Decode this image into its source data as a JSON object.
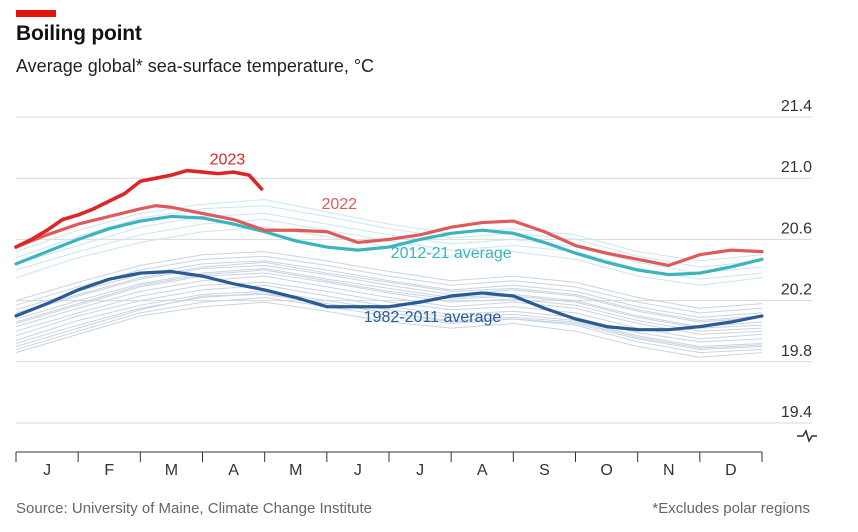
{
  "header": {
    "title": "Boiling point",
    "subtitle": "Average global* sea-surface temperature, °C"
  },
  "footer": {
    "source": "Source: University of Maine, Climate Change Institute",
    "note": "*Excludes polar regions"
  },
  "colors": {
    "accent_red": "#e3120b",
    "y2023": "#dc2626",
    "y2022": "#e05a5a",
    "avg_2012_21": "#3cb4bd",
    "avg_1982_2011": "#2a5b95",
    "background_years": "#c8d4e3",
    "background_recent": "#c9e7f3"
  },
  "chart_data": {
    "type": "line",
    "title": "Boiling point",
    "subtitle": "Average global* sea-surface temperature, °C",
    "xlabel": "",
    "ylabel": "",
    "x_unit": "month",
    "x_range": [
      0,
      12
    ],
    "months": [
      "J",
      "F",
      "M",
      "A",
      "M",
      "J",
      "J",
      "A",
      "S",
      "O",
      "N",
      "D"
    ],
    "ylim": [
      19.4,
      21.4
    ],
    "yticks": [
      19.4,
      19.8,
      20.2,
      20.6,
      21.0,
      21.4
    ],
    "ytick_labels": [
      "19.4",
      "19.8",
      "20.2",
      "20.6",
      "21.0",
      "21.4"
    ],
    "grid": true,
    "axis_break": true,
    "series": [
      {
        "name": "2023",
        "label": "2023",
        "x": [
          0,
          0.25,
          0.5,
          0.75,
          1,
          1.25,
          1.5,
          1.75,
          2,
          2.25,
          2.5,
          2.75,
          3,
          3.25,
          3.5,
          3.75,
          3.95
        ],
        "y": [
          20.55,
          20.6,
          20.66,
          20.73,
          20.76,
          20.8,
          20.85,
          20.9,
          20.98,
          21.0,
          21.02,
          21.05,
          21.04,
          21.03,
          21.04,
          21.02,
          20.93
        ]
      },
      {
        "name": "2022",
        "label": "2022",
        "x": [
          0,
          0.5,
          1,
          1.5,
          2,
          2.25,
          2.5,
          3,
          3.5,
          4,
          4.5,
          5,
          5.5,
          6,
          6.5,
          7,
          7.5,
          8,
          8.5,
          9,
          9.5,
          10,
          10.5,
          11,
          11.5,
          12
        ],
        "y": [
          20.55,
          20.63,
          20.7,
          20.75,
          20.8,
          20.82,
          20.81,
          20.77,
          20.73,
          20.66,
          20.66,
          20.65,
          20.58,
          20.6,
          20.63,
          20.68,
          20.71,
          20.72,
          20.65,
          20.56,
          20.51,
          20.47,
          20.43,
          20.5,
          20.53,
          20.52
        ]
      },
      {
        "name": "2012-21 average",
        "label": "2012-21 average",
        "x": [
          0,
          0.5,
          1,
          1.5,
          2,
          2.5,
          3,
          3.5,
          4,
          4.5,
          5,
          5.5,
          6,
          6.5,
          7,
          7.5,
          8,
          8.5,
          9,
          9.5,
          10,
          10.5,
          11,
          11.5,
          12
        ],
        "y": [
          20.44,
          20.52,
          20.6,
          20.67,
          20.72,
          20.75,
          20.74,
          20.7,
          20.65,
          20.59,
          20.55,
          20.53,
          20.55,
          20.6,
          20.64,
          20.66,
          20.64,
          20.58,
          20.51,
          20.45,
          20.4,
          20.37,
          20.38,
          20.42,
          20.47
        ]
      },
      {
        "name": "1982-2011 average",
        "label": "1982-2011 average",
        "x": [
          0,
          0.5,
          1,
          1.5,
          2,
          2.5,
          3,
          3.5,
          4,
          4.5,
          5,
          5.5,
          6,
          6.5,
          7,
          7.5,
          8,
          8.5,
          9,
          9.5,
          10,
          10.5,
          11,
          11.5,
          12
        ],
        "y": [
          20.1,
          20.18,
          20.27,
          20.34,
          20.38,
          20.39,
          20.36,
          20.31,
          20.27,
          20.22,
          20.16,
          20.16,
          20.16,
          20.19,
          20.23,
          20.25,
          20.23,
          20.15,
          20.08,
          20.03,
          20.01,
          20.01,
          20.03,
          20.06,
          20.1
        ]
      }
    ],
    "background_years_note": "Thin lines show individual years 1982-2021 (light blue: recent years)",
    "background_years": [
      {
        "recent": false,
        "y": [
          19.88,
          20.0,
          20.12,
          20.19,
          20.22,
          20.16,
          20.1,
          20.05,
          20.08,
          20.04,
          19.93,
          19.86,
          19.88
        ]
      },
      {
        "recent": false,
        "y": [
          19.94,
          20.07,
          20.17,
          20.24,
          20.26,
          20.2,
          20.14,
          20.09,
          20.11,
          20.07,
          19.97,
          19.9,
          19.92
        ]
      },
      {
        "recent": false,
        "y": [
          19.9,
          20.02,
          20.14,
          20.23,
          20.24,
          20.18,
          20.12,
          20.06,
          20.08,
          20.05,
          19.95,
          19.88,
          19.9
        ]
      },
      {
        "recent": false,
        "y": [
          19.97,
          20.1,
          20.2,
          20.27,
          20.3,
          20.23,
          20.16,
          20.11,
          20.13,
          20.09,
          19.99,
          19.93,
          19.95
        ]
      },
      {
        "recent": false,
        "y": [
          20.0,
          20.12,
          20.23,
          20.3,
          20.32,
          20.26,
          20.19,
          20.14,
          20.16,
          20.12,
          20.02,
          19.95,
          19.98
        ]
      },
      {
        "recent": false,
        "y": [
          20.03,
          20.15,
          20.26,
          20.33,
          20.36,
          20.29,
          20.22,
          20.16,
          20.19,
          20.15,
          20.05,
          19.98,
          20.0
        ]
      },
      {
        "recent": false,
        "y": [
          20.05,
          20.17,
          20.29,
          20.36,
          20.38,
          20.32,
          20.25,
          20.19,
          20.21,
          20.17,
          20.07,
          20.0,
          20.02
        ]
      },
      {
        "recent": false,
        "y": [
          20.08,
          20.2,
          20.31,
          20.38,
          20.41,
          20.34,
          20.28,
          20.22,
          20.24,
          20.2,
          20.1,
          20.03,
          20.06
        ]
      },
      {
        "recent": false,
        "y": [
          20.11,
          20.23,
          20.34,
          20.41,
          20.43,
          20.37,
          20.3,
          20.24,
          20.27,
          20.23,
          20.13,
          20.06,
          20.09
        ]
      },
      {
        "recent": false,
        "y": [
          20.14,
          20.26,
          20.37,
          20.44,
          20.46,
          20.4,
          20.33,
          20.27,
          20.3,
          20.26,
          20.16,
          20.09,
          20.12
        ]
      },
      {
        "recent": false,
        "y": [
          20.17,
          20.29,
          20.4,
          20.47,
          20.49,
          20.43,
          20.36,
          20.3,
          20.33,
          20.29,
          20.19,
          20.12,
          20.15
        ]
      },
      {
        "recent": false,
        "y": [
          20.2,
          20.32,
          20.43,
          20.5,
          20.52,
          20.46,
          20.39,
          20.33,
          20.36,
          20.32,
          20.22,
          20.15,
          20.18
        ]
      },
      {
        "recent": false,
        "y": [
          19.86,
          19.98,
          20.1,
          20.16,
          20.19,
          20.13,
          20.06,
          20.02,
          20.05,
          20.0,
          19.9,
          19.83,
          19.86
        ]
      },
      {
        "recent": false,
        "y": [
          19.92,
          20.04,
          20.15,
          20.22,
          20.25,
          20.18,
          20.12,
          20.07,
          20.09,
          20.06,
          19.96,
          19.89,
          19.91
        ]
      },
      {
        "recent": false,
        "y": [
          20.06,
          20.18,
          20.3,
          20.37,
          20.4,
          20.33,
          20.26,
          20.21,
          20.23,
          20.19,
          20.09,
          20.02,
          20.04
        ]
      },
      {
        "recent": false,
        "y": [
          20.12,
          20.24,
          20.35,
          20.42,
          20.45,
          20.38,
          20.32,
          20.26,
          20.28,
          20.24,
          20.14,
          20.07,
          20.1
        ]
      },
      {
        "recent": true,
        "y": [
          20.35,
          20.48,
          20.58,
          20.65,
          20.68,
          20.62,
          20.55,
          20.49,
          20.52,
          20.47,
          20.36,
          20.3,
          20.35
        ]
      },
      {
        "recent": true,
        "y": [
          20.4,
          20.52,
          20.63,
          20.7,
          20.73,
          20.66,
          20.59,
          20.53,
          20.56,
          20.52,
          20.41,
          20.34,
          20.38
        ]
      },
      {
        "recent": true,
        "y": [
          20.44,
          20.56,
          20.68,
          20.75,
          20.77,
          20.7,
          20.63,
          20.57,
          20.6,
          20.55,
          20.45,
          20.38,
          20.42
        ]
      },
      {
        "recent": true,
        "y": [
          20.48,
          20.62,
          20.74,
          20.8,
          20.82,
          20.75,
          20.67,
          20.61,
          20.64,
          20.6,
          20.49,
          20.42,
          20.46
        ]
      },
      {
        "recent": true,
        "y": [
          20.52,
          20.66,
          20.77,
          20.83,
          20.86,
          20.78,
          20.7,
          20.64,
          20.67,
          20.63,
          20.52,
          20.46,
          20.5
        ]
      }
    ]
  }
}
